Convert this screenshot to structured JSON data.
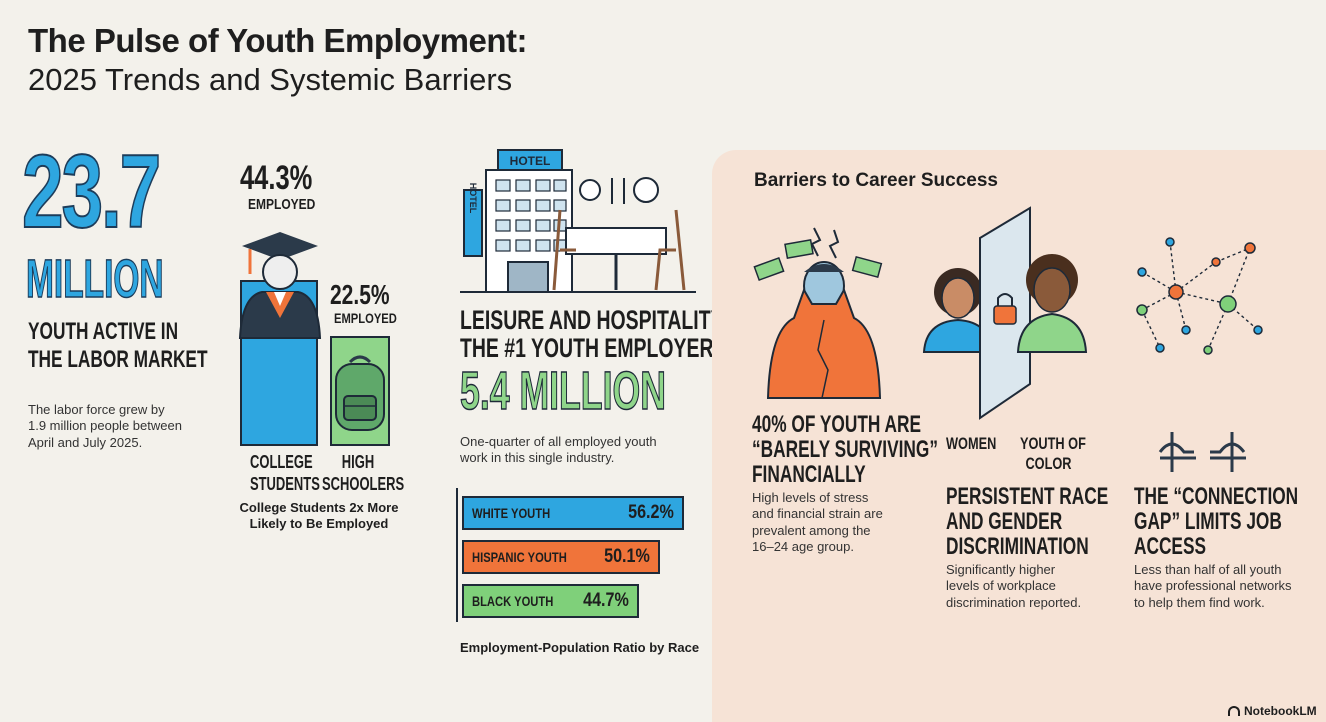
{
  "header": {
    "title_line1": "The Pulse of Youth Employment:",
    "title_line2": "2025 Trends and Systemic Barriers"
  },
  "labor_force": {
    "big_number": "23.7",
    "unit": "MILLION",
    "caption_line1": "YOUTH ACTIVE IN",
    "caption_line2": "THE LABOR MARKET",
    "note_line1": "The labor force grew by",
    "note_line2": "1.9 million people between",
    "note_line3": "April and July 2025."
  },
  "education": {
    "college_pct": "44.3%",
    "college_pct_label": "EMPLOYED",
    "college_label_line1": "COLLEGE",
    "college_label_line2": "STUDENTS",
    "college_value": 44.3,
    "hs_pct": "22.5%",
    "hs_pct_label": "EMPLOYED",
    "hs_label_line1": "HIGH",
    "hs_label_line2": "SCHOOLERS",
    "hs_value": 22.5,
    "caption_line1": "College Students 2x More",
    "caption_line2": "Likely to Be Employed"
  },
  "hospitality": {
    "hotel_sign": "HOTEL",
    "hotel_vertical_sign": "HOTEL",
    "headline_line1": "LEISURE AND HOSPITALITY IS",
    "headline_line2": "THE #1 YOUTH EMPLOYER",
    "big_value": "5.4 MILLION",
    "note_line1": "One-quarter of all employed youth",
    "note_line2": "work in this single industry."
  },
  "race_ratio": {
    "caption": "Employment-Population Ratio by Race",
    "bars": [
      {
        "label": "WHITE YOUTH",
        "display": "56.2%",
        "value": 56.2,
        "color": "#2ea6e0"
      },
      {
        "label": "HISPANIC YOUTH",
        "display": "50.1%",
        "value": 50.1,
        "color": "#f0743a"
      },
      {
        "label": "BLACK YOUTH",
        "display": "44.7%",
        "value": 44.7,
        "color": "#7fd07a"
      }
    ]
  },
  "barriers": {
    "panel_title": "Barriers to Career Success",
    "financial": {
      "headline_line1": "40% OF YOUTH ARE",
      "headline_line2": "“BARELY SURVIVING”",
      "headline_line3": "FINANCIALLY",
      "note_line1": "High levels of stress",
      "note_line2": "and financial strain are",
      "note_line3": "prevalent among the",
      "note_line4": "16–24 age group."
    },
    "discrimination": {
      "label_women": "WOMEN",
      "label_youth_line1": "YOUTH OF",
      "label_youth_line2": "COLOR",
      "headline_line1": "PERSISTENT RACE",
      "headline_line2": "AND GENDER",
      "headline_line3": "DISCRIMINATION",
      "note_line1": "Significantly higher",
      "note_line2": "levels of workplace",
      "note_line3": "discrimination reported."
    },
    "connection": {
      "headline_line1": "THE “CONNECTION",
      "headline_line2": "GAP” LIMITS JOB",
      "headline_line3": "ACCESS",
      "note_line1": "Less than half of all youth",
      "note_line2": "have professional networks",
      "note_line3": "to help them find work."
    }
  },
  "footer": {
    "brand": "NotebookLM"
  },
  "colors": {
    "blue": "#2ea6e0",
    "green": "#7fd07a",
    "orange": "#f0743a",
    "panel": "#f6e3d6",
    "navy": "#1e2a38"
  }
}
